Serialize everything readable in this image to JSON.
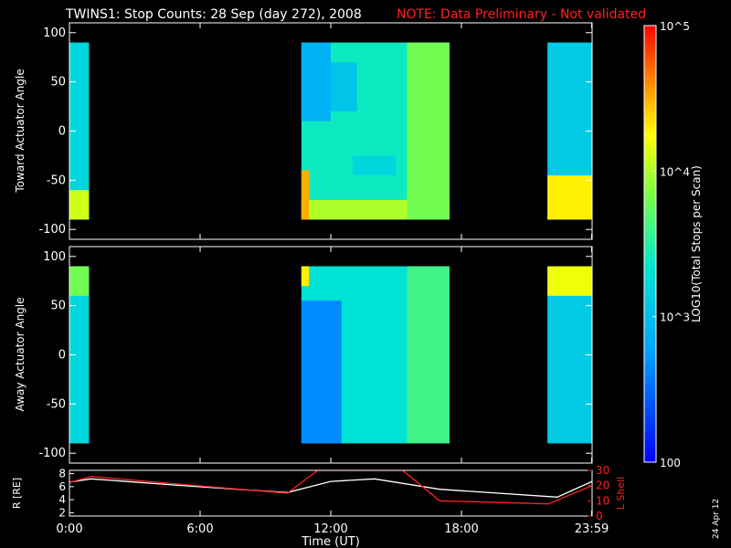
{
  "title": "TWINS1: Stop Counts: 28 Sep (day 272), 2008",
  "note": "NOTE: Data Preliminary - Not validated",
  "date_stamp": "24 Apr 12",
  "colors": {
    "note": "#ff2020",
    "r_line": "#ffffff",
    "l_line": "#ff2020"
  },
  "colorbar": {
    "label": "LOG10(Total Stops per Scan)",
    "ticks": [
      "10^5",
      "10^4",
      "10^3",
      "100"
    ],
    "range": [
      100,
      100000
    ],
    "scale": "log"
  },
  "chart_data": [
    {
      "type": "heatmap",
      "ylabel": "Toward Actuator Angle",
      "ylim": [
        -110,
        110
      ],
      "yticks": [
        "100",
        "50",
        "0",
        "-50",
        "-100"
      ],
      "xlim_hours": [
        0,
        24
      ],
      "bins": {
        "angle_min": -90,
        "angle_max": 90
      },
      "data_intervals_hours": [
        [
          0.0,
          0.9
        ],
        [
          10.35,
          10.45
        ],
        [
          10.65,
          17.45
        ],
        [
          21.95,
          23.99
        ]
      ],
      "regions": [
        {
          "t": [
            0.0,
            0.9
          ],
          "a": [
            -90,
            90
          ],
          "v": 3.2
        },
        {
          "t": [
            0.0,
            0.9
          ],
          "a": [
            -90,
            -60
          ],
          "v": 4.1
        },
        {
          "t": [
            10.65,
            17.45
          ],
          "a": [
            -90,
            90
          ],
          "v": 3.4
        },
        {
          "t": [
            10.65,
            12.0
          ],
          "a": [
            10,
            90
          ],
          "v": 2.9
        },
        {
          "t": [
            12.0,
            13.2
          ],
          "a": [
            20,
            70
          ],
          "v": 3.05
        },
        {
          "t": [
            10.65,
            17.45
          ],
          "a": [
            -90,
            -70
          ],
          "v": 4.0
        },
        {
          "t": [
            10.65,
            11.0
          ],
          "a": [
            -90,
            -40
          ],
          "v": 4.5
        },
        {
          "t": [
            13.0,
            15.0
          ],
          "a": [
            -45,
            -25
          ],
          "v": 3.2
        },
        {
          "t": [
            15.5,
            17.45
          ],
          "a": [
            -90,
            90
          ],
          "v": 3.8
        },
        {
          "t": [
            21.95,
            23.99
          ],
          "a": [
            -90,
            90
          ],
          "v": 3.1
        },
        {
          "t": [
            21.95,
            23.99
          ],
          "a": [
            -90,
            -45
          ],
          "v": 4.3
        }
      ]
    },
    {
      "type": "heatmap",
      "ylabel": "Away Actuator Angle",
      "ylim": [
        -110,
        110
      ],
      "yticks": [
        "100",
        "50",
        "0",
        "-50",
        "-100"
      ],
      "xlim_hours": [
        0,
        24
      ],
      "bins": {
        "angle_min": -90,
        "angle_max": 90
      },
      "data_intervals_hours": [
        [
          0.0,
          0.9
        ],
        [
          10.35,
          10.45
        ],
        [
          10.65,
          17.45
        ],
        [
          21.95,
          23.99
        ]
      ],
      "regions": [
        {
          "t": [
            0.0,
            0.9
          ],
          "a": [
            -90,
            90
          ],
          "v": 3.2
        },
        {
          "t": [
            0.0,
            0.9
          ],
          "a": [
            60,
            90
          ],
          "v": 3.8
        },
        {
          "t": [
            10.65,
            17.45
          ],
          "a": [
            -90,
            90
          ],
          "v": 3.3
        },
        {
          "t": [
            10.65,
            12.5
          ],
          "a": [
            -90,
            55
          ],
          "v": 2.65
        },
        {
          "t": [
            10.65,
            11.0
          ],
          "a": [
            70,
            90
          ],
          "v": 4.3
        },
        {
          "t": [
            15.5,
            17.45
          ],
          "a": [
            -90,
            90
          ],
          "v": 3.6
        },
        {
          "t": [
            21.95,
            23.99
          ],
          "a": [
            -90,
            90
          ],
          "v": 3.1
        },
        {
          "t": [
            21.95,
            23.99
          ],
          "a": [
            60,
            90
          ],
          "v": 4.2
        }
      ]
    },
    {
      "type": "line",
      "ylabel": "R [RE]",
      "ylabel_right": "L Shell",
      "xlabel": "Time (UT)",
      "xticks": [
        "0:00",
        "6:00",
        "12:00",
        "18:00",
        "23:59"
      ],
      "xtick_hours": [
        0,
        6,
        12,
        18,
        23.98
      ],
      "yticks": [
        "2",
        "4",
        "6",
        "8"
      ],
      "ylim": [
        1.5,
        8.5
      ],
      "yticks_right": [
        "0",
        "10",
        "20",
        "30"
      ],
      "ylim_right": [
        0,
        30
      ],
      "series": [
        {
          "name": "R",
          "axis": "left",
          "x": [
            0,
            1,
            5,
            10,
            12,
            14,
            17,
            22.4,
            24
          ],
          "y": [
            6.7,
            7.2,
            6.2,
            5.1,
            6.8,
            7.2,
            5.6,
            4.4,
            6.8
          ]
        },
        {
          "name": "L",
          "axis": "right",
          "x": [
            0,
            1,
            5,
            10,
            11.4,
            15.3,
            17,
            22,
            24
          ],
          "y": [
            22,
            26,
            21,
            15,
            30,
            30,
            10,
            8,
            20
          ]
        }
      ]
    }
  ]
}
